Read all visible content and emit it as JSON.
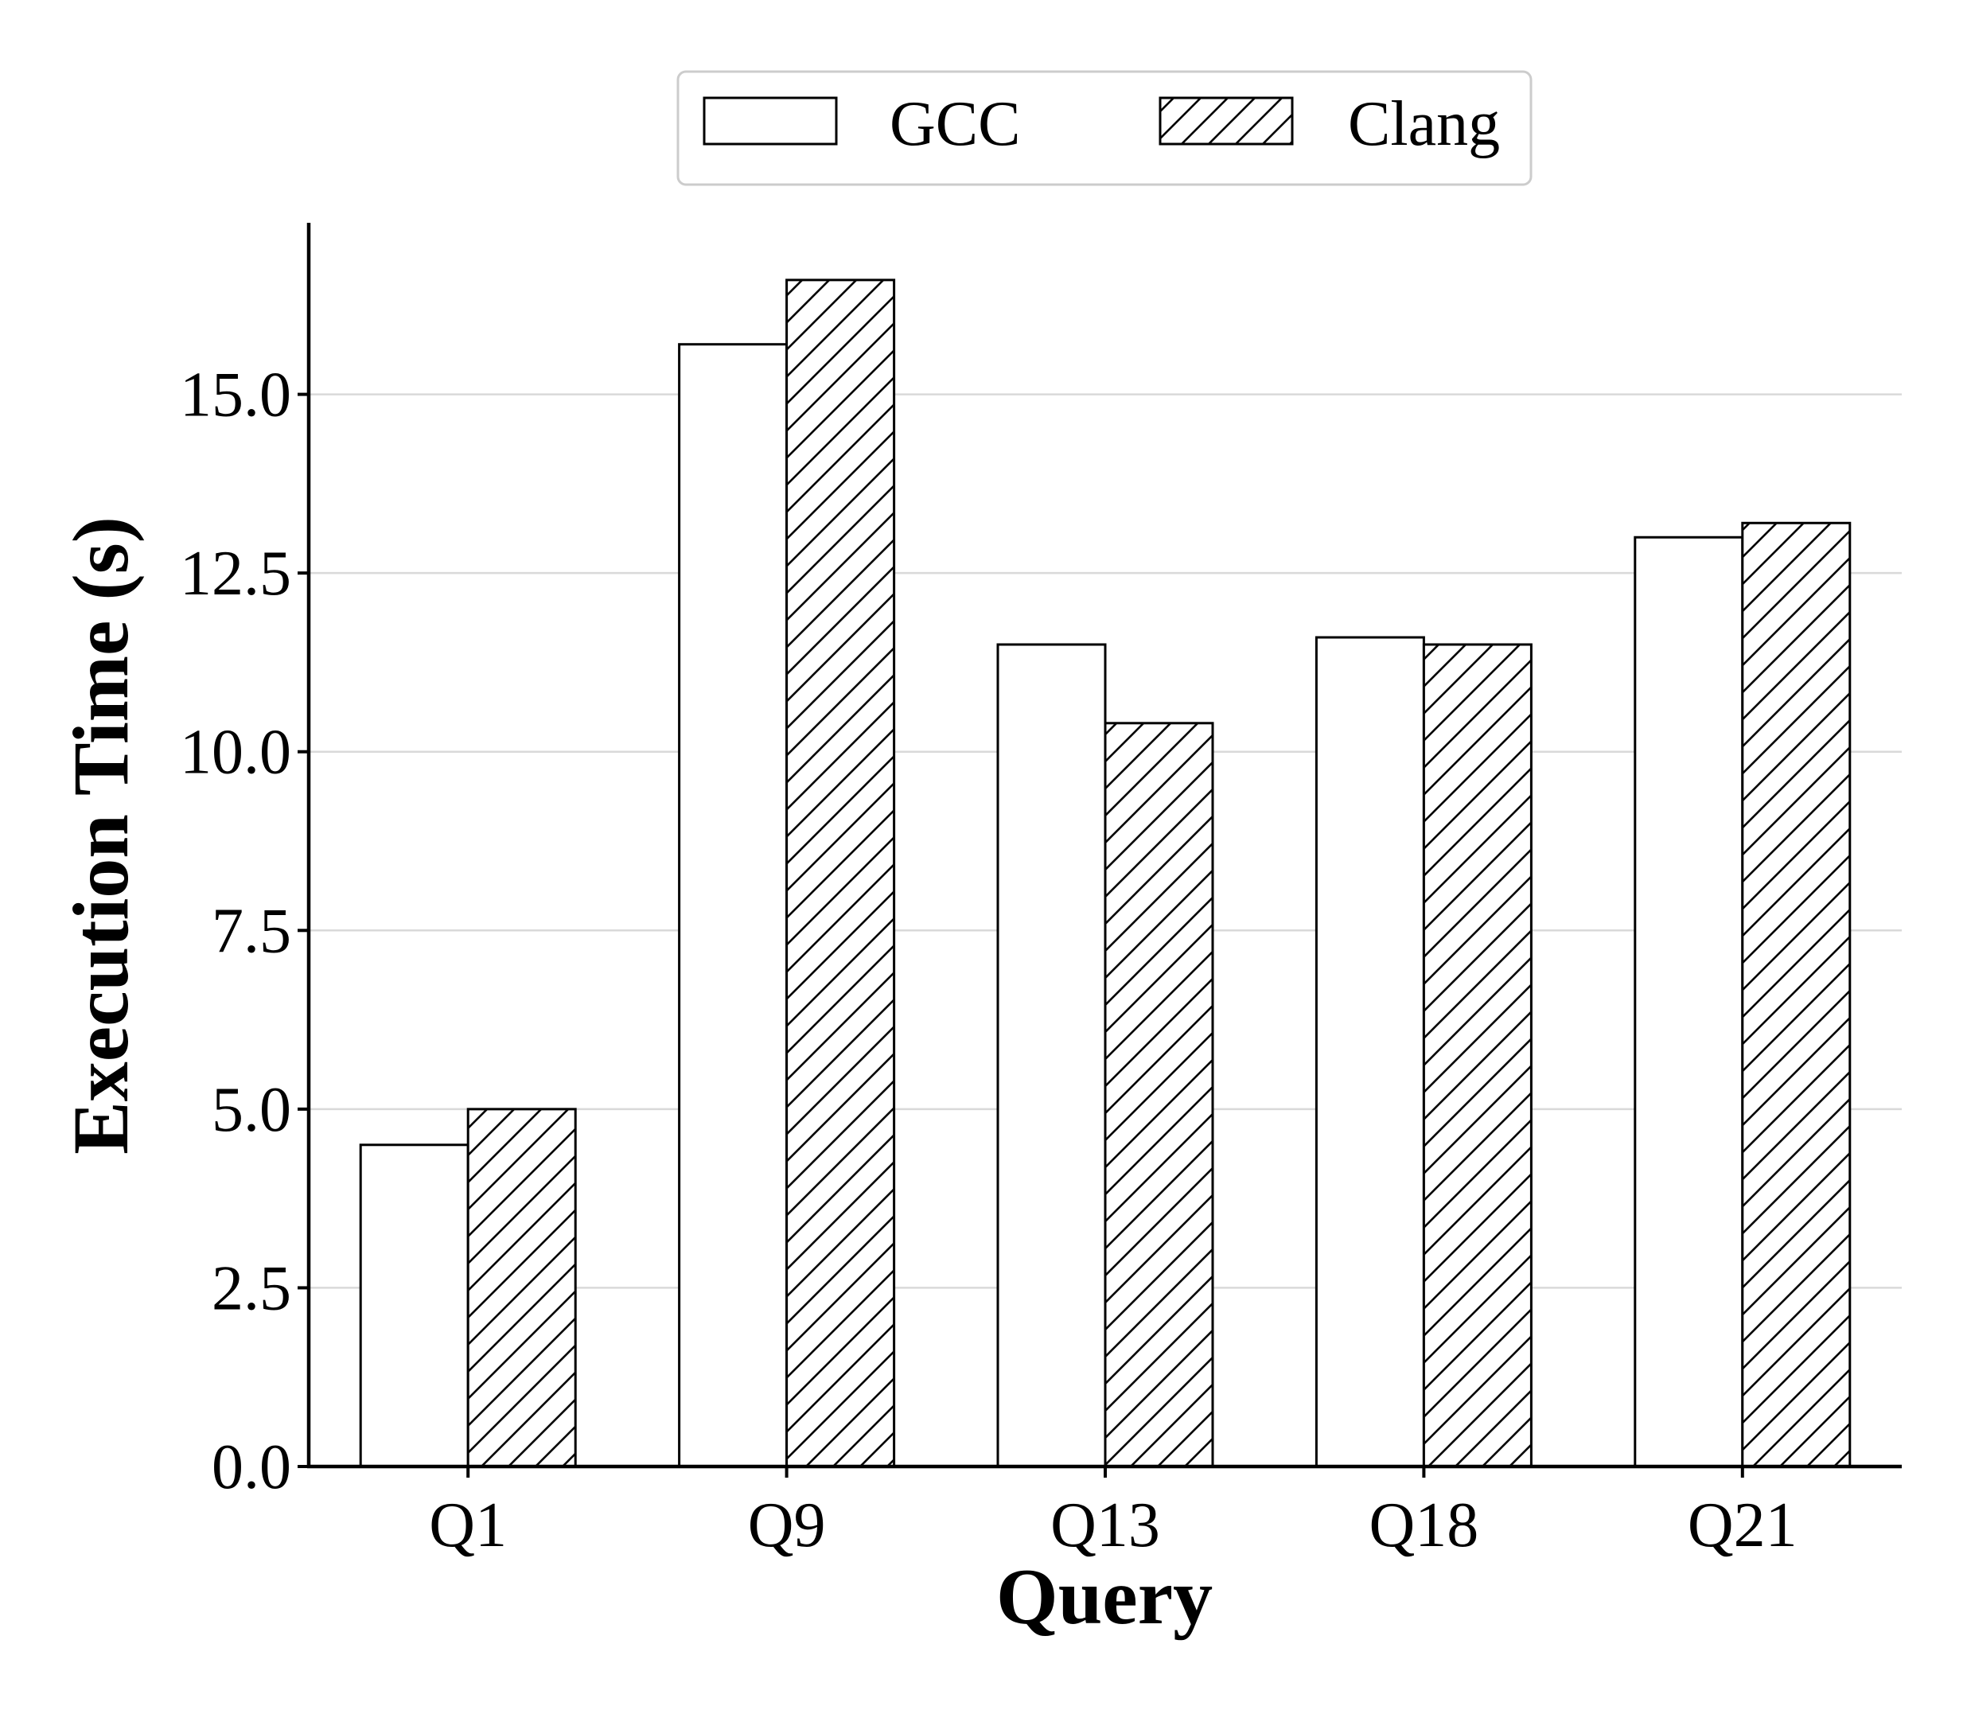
{
  "chart_data": {
    "type": "bar",
    "title": "",
    "xlabel": "Query",
    "ylabel": "Execution Time (s)",
    "categories": [
      "Q1",
      "Q9",
      "Q13",
      "Q18",
      "Q21"
    ],
    "series": [
      {
        "name": "GCC",
        "values": [
          4.5,
          15.7,
          11.5,
          11.6,
          13.0
        ],
        "fill": "#ffffff",
        "hatch": false
      },
      {
        "name": "Clang",
        "values": [
          5.0,
          16.6,
          10.4,
          11.5,
          13.2
        ],
        "fill": "#ffffff",
        "hatch": true
      }
    ],
    "ylim": [
      0,
      17.4
    ],
    "yticks": [
      0.0,
      2.5,
      5.0,
      7.5,
      10.0,
      12.5,
      15.0
    ],
    "ytick_labels": [
      "0.0",
      "2.5",
      "5.0",
      "7.5",
      "10.0",
      "12.5",
      "15.0"
    ],
    "grid": "horizontal",
    "legend_position": "top-center",
    "colors": {
      "edge": "#000000",
      "grid": "#d9d9d9",
      "legend_border": "#cccccc"
    }
  }
}
